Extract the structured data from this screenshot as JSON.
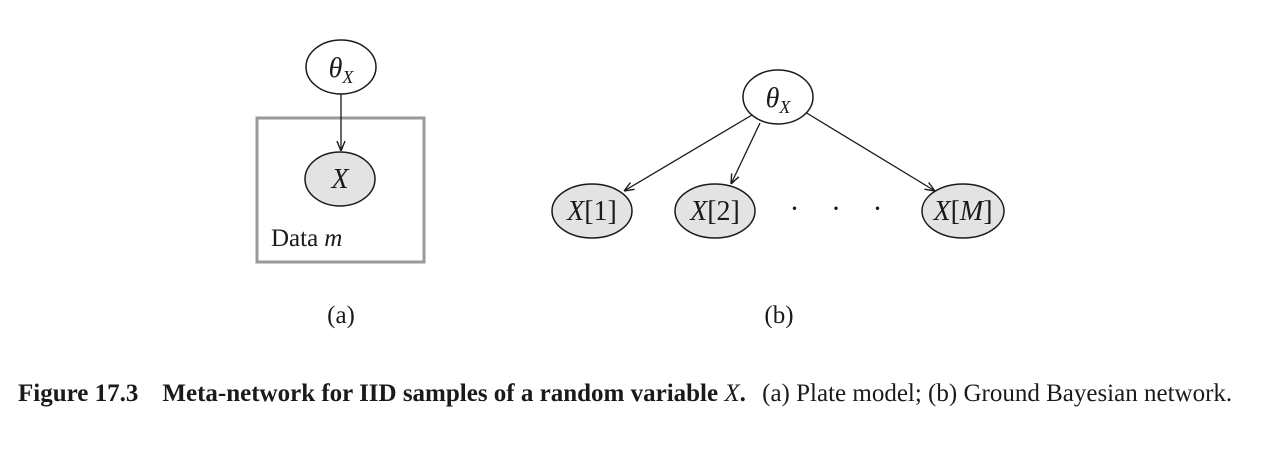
{
  "diagram_a": {
    "theta_node": {
      "symbol": "θ",
      "subscript": "X"
    },
    "x_node": {
      "label": "X"
    },
    "plate": {
      "text": "Data",
      "index": "m"
    },
    "sub_caption": "(a)"
  },
  "diagram_b": {
    "theta_node": {
      "symbol": "θ",
      "subscript": "X"
    },
    "x_nodes": [
      {
        "var": "X",
        "index": "1"
      },
      {
        "var": "X",
        "index": "2"
      },
      {
        "var": "X",
        "index": "M"
      }
    ],
    "ellipsis": "· · ·",
    "sub_caption": "(b)"
  },
  "caption": {
    "figure_label": "Figure 17.3",
    "title_prefix": "Meta-network for IID samples of a random variable",
    "title_var": "X",
    "title_suffix": ".",
    "description": "(a) Plate model; (b) Ground Bayesian network."
  },
  "colors": {
    "observed_fill": "#e3e3e3",
    "plate_border": "#9a9a9a",
    "stroke": "#1a1a1a"
  }
}
